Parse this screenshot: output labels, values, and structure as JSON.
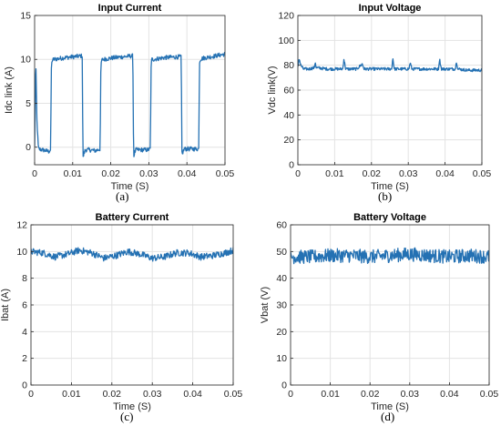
{
  "chart_data": [
    {
      "type": "line",
      "title": "Input Current",
      "xlabel": "Time (S)",
      "ylabel": "Idc link (A)",
      "xlim": [
        0,
        0.05
      ],
      "ylim": [
        -2,
        15
      ],
      "xticks": [
        0,
        0.01,
        0.02,
        0.03,
        0.04,
        0.05
      ],
      "xticklabels": [
        "0",
        "0.01",
        "0.02",
        "0.03",
        "0.04",
        "0.05"
      ],
      "yticks": [
        0,
        5,
        10,
        15
      ],
      "yticklabels": [
        "0",
        "5",
        "10",
        "15"
      ],
      "grid": true,
      "series_color": "#2471b3",
      "series": [
        {
          "x": [
            0,
            0.0003,
            0.0006,
            0.001,
            0.002,
            0.003,
            0.0037,
            0.0042,
            0.0044,
            0.0046,
            0.005,
            0.008,
            0.0125,
            0.0127,
            0.0129,
            0.0133,
            0.0143,
            0.016,
            0.0172,
            0.0174,
            0.0176,
            0.018,
            0.021,
            0.0258,
            0.026,
            0.0262,
            0.0266,
            0.0276,
            0.0297,
            0.0304,
            0.0306,
            0.0308,
            0.0312,
            0.034,
            0.0385,
            0.0387,
            0.0389,
            0.0393,
            0.0402,
            0.0423,
            0.0431,
            0.0433,
            0.0435,
            0.0439,
            0.045,
            0.05
          ],
          "y": [
            0,
            10,
            3,
            -0.2,
            -0.3,
            -0.4,
            -0.5,
            -0.3,
            9,
            9.9,
            10,
            10.2,
            10.4,
            -1.3,
            -0.8,
            -0.3,
            -0.3,
            -0.4,
            -0.2,
            9.2,
            9.9,
            10,
            10.2,
            10.4,
            -1.2,
            -0.7,
            -0.3,
            -0.3,
            -0.3,
            -0.2,
            9.5,
            10,
            10,
            10.2,
            10.3,
            -1.1,
            -0.6,
            -0.2,
            -0.2,
            -0.2,
            -0.2,
            9.6,
            10,
            10.1,
            10.2,
            10.6
          ]
        }
      ],
      "sublabel": "(a)"
    },
    {
      "type": "line",
      "title": "Input Voltage",
      "xlabel": "Time (S)",
      "ylabel": "Vdc link(V)",
      "xlim": [
        0,
        0.05
      ],
      "ylim": [
        0,
        120
      ],
      "xticks": [
        0,
        0.01,
        0.02,
        0.03,
        0.04,
        0.05
      ],
      "xticklabels": [
        "0",
        "0.01",
        "0.02",
        "0.03",
        "0.04",
        "0.05"
      ],
      "yticks": [
        0,
        20,
        40,
        60,
        80,
        100,
        120
      ],
      "yticklabels": [
        "0",
        "20",
        "40",
        "60",
        "80",
        "100",
        "120"
      ],
      "grid": true,
      "series_color": "#2471b3",
      "series": [
        {
          "x": [
            0,
            0.0003,
            0.0008,
            0.0015,
            0.003,
            0.0045,
            0.0047,
            0.005,
            0.008,
            0.0122,
            0.0125,
            0.013,
            0.016,
            0.0175,
            0.018,
            0.021,
            0.0255,
            0.0258,
            0.0262,
            0.028,
            0.0302,
            0.0305,
            0.031,
            0.034,
            0.0382,
            0.0385,
            0.039,
            0.042,
            0.0428,
            0.0431,
            0.0435,
            0.046,
            0.05
          ],
          "y": [
            78,
            86,
            80,
            77,
            77,
            78,
            83,
            78,
            77,
            77,
            85,
            77,
            77,
            81,
            77,
            77,
            77,
            86,
            77,
            77,
            77,
            82,
            77,
            77,
            77,
            85,
            77,
            77,
            77,
            83,
            77,
            76,
            76
          ]
        }
      ],
      "sublabel": "(b)"
    },
    {
      "type": "line",
      "title": "Battery Current",
      "xlabel": "Time (S)",
      "ylabel": "Ibat (A)",
      "xlim": [
        0,
        0.05
      ],
      "ylim": [
        0,
        12
      ],
      "xticks": [
        0,
        0.01,
        0.02,
        0.03,
        0.04,
        0.05
      ],
      "xticklabels": [
        "0",
        "0.01",
        "0.02",
        "0.03",
        "0.04",
        "0.05"
      ],
      "yticks": [
        0,
        2,
        4,
        6,
        8,
        10,
        12
      ],
      "yticklabels": [
        "0",
        "2",
        "4",
        "6",
        "8",
        "10",
        "12"
      ],
      "grid": true,
      "series_color": "#2471b3",
      "series": [
        {
          "x": [
            0,
            0.003,
            0.006,
            0.009,
            0.012,
            0.015,
            0.018,
            0.021,
            0.024,
            0.027,
            0.03,
            0.033,
            0.036,
            0.039,
            0.042,
            0.045,
            0.048,
            0.05
          ],
          "y": [
            10,
            9.9,
            9.6,
            9.8,
            10.1,
            9.9,
            9.5,
            9.7,
            10,
            9.8,
            9.5,
            9.6,
            9.9,
            9.9,
            9.6,
            9.7,
            9.9,
            10.1
          ]
        }
      ],
      "sublabel": "(c)"
    },
    {
      "type": "line",
      "title": "Battery Voltage",
      "xlabel": "Time (S)",
      "ylabel": "Vbat (V)",
      "xlim": [
        0,
        0.05
      ],
      "ylim": [
        0,
        60
      ],
      "xticks": [
        0,
        0.01,
        0.02,
        0.03,
        0.04,
        0.05
      ],
      "xticklabels": [
        "0",
        "0.01",
        "0.02",
        "0.03",
        "0.04",
        "0.05"
      ],
      "yticks": [
        0,
        10,
        20,
        30,
        40,
        50,
        60
      ],
      "yticklabels": [
        "0",
        "10",
        "20",
        "30",
        "40",
        "50",
        "60"
      ],
      "grid": true,
      "series_color": "#2471b3",
      "series": [
        {
          "x": [
            0,
            0.005,
            0.01,
            0.015,
            0.02,
            0.025,
            0.03,
            0.035,
            0.04,
            0.045,
            0.05
          ],
          "y": [
            48,
            48,
            48.5,
            48.5,
            48,
            48.5,
            49,
            48.5,
            48,
            48.5,
            48
          ]
        }
      ],
      "sublabel": "(d)"
    }
  ]
}
